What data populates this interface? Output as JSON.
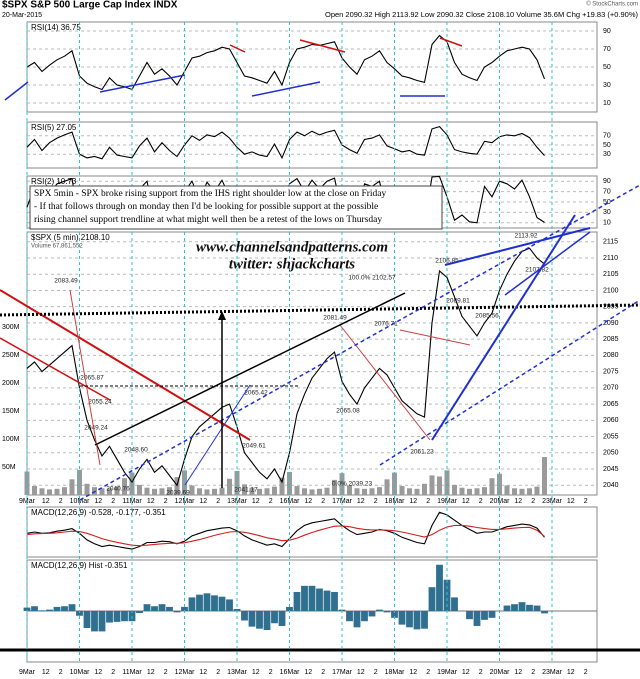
{
  "header": {
    "symbol": "$SPX S&P 500 Large Cap Index INDX",
    "date": "20-Mar-2015",
    "quote": "Open 2090.32 High 2113.92 Low 2090.32 Close 2108.10 Volume 35.6M Chg +19.83 (+0.90%)",
    "credit": "© StockCharts.com"
  },
  "chart_data": [
    {
      "type": "line",
      "title": "RSI(14) 36.75",
      "ylim": [
        0,
        100
      ],
      "yticks": [
        10,
        30,
        50,
        70,
        90
      ],
      "series": [
        {
          "color": "#000000",
          "values": [
            50,
            55,
            45,
            52,
            58,
            62,
            68,
            40,
            32,
            28,
            25,
            38,
            30,
            28,
            25,
            40,
            55,
            42,
            48,
            40,
            30,
            45,
            60,
            62,
            66,
            68,
            72,
            70,
            55,
            40,
            38,
            35,
            32,
            45,
            30,
            55,
            70,
            72,
            75,
            74,
            76,
            78,
            60,
            50,
            42,
            58,
            62,
            68,
            55,
            48,
            40,
            38,
            35,
            33,
            75,
            85,
            78,
            55,
            42,
            38,
            35,
            50,
            55,
            62,
            68,
            70,
            72,
            70,
            58,
            36.75
          ]
        }
      ]
    },
    {
      "type": "line",
      "title": "RSI(5) 27.05",
      "ylim": [
        0,
        100
      ],
      "yticks": [
        30,
        50,
        70
      ],
      "series": [
        {
          "color": "#000000",
          "values": [
            45,
            62,
            38,
            55,
            65,
            72,
            78,
            30,
            22,
            25,
            20,
            45,
            28,
            25,
            22,
            48,
            65,
            35,
            55,
            38,
            25,
            50,
            70,
            60,
            72,
            68,
            78,
            65,
            45,
            30,
            35,
            28,
            25,
            52,
            22,
            62,
            78,
            70,
            80,
            72,
            78,
            82,
            50,
            40,
            32,
            62,
            65,
            72,
            48,
            42,
            35,
            38,
            30,
            28,
            85,
            90,
            72,
            40,
            35,
            32,
            30,
            58,
            55,
            68,
            72,
            70,
            75,
            66,
            45,
            27.05
          ]
        }
      ]
    },
    {
      "type": "line",
      "title": "RSI(2) 10.73",
      "ylim": [
        0,
        100
      ],
      "yticks": [
        10,
        30,
        50,
        70,
        90
      ],
      "series": [
        {
          "color": "#000000",
          "values": [
            40,
            80,
            20,
            65,
            85,
            90,
            95,
            10,
            5,
            20,
            8,
            70,
            15,
            12,
            8,
            75,
            90,
            20,
            65,
            25,
            8,
            70,
            90,
            55,
            88,
            70,
            92,
            60,
            30,
            10,
            40,
            12,
            8,
            75,
            5,
            85,
            95,
            70,
            92,
            75,
            90,
            96,
            30,
            15,
            10,
            85,
            80,
            90,
            25,
            35,
            20,
            45,
            15,
            10,
            98,
            99,
            60,
            15,
            25,
            12,
            10,
            80,
            60,
            90,
            85,
            75,
            92,
            60,
            20,
            10.73
          ]
        }
      ]
    },
    {
      "type": "line",
      "title": "$SPX (5 min) 2108.10",
      "ylim": [
        2037,
        2118
      ],
      "yticks": [
        2040,
        2045,
        2050,
        2055,
        2060,
        2065,
        2070,
        2075,
        2080,
        2085,
        2090,
        2095,
        2100,
        2105,
        2110,
        2115
      ],
      "y2lim": [
        0,
        300000000
      ],
      "y2ticks": [
        {
          "value": 50000000,
          "label": "50M"
        },
        {
          "value": 100000000,
          "label": "100M"
        },
        {
          "value": 150000000,
          "label": "150M"
        },
        {
          "value": 200000000,
          "label": "200M"
        },
        {
          "value": 250000000,
          "label": "250M"
        },
        {
          "value": 300000000,
          "label": "300M"
        }
      ],
      "xlim": [
        0,
        76
      ],
      "xticks": [
        {
          "value": 0,
          "label": "9Mar"
        },
        {
          "value": 2.5,
          "label": "12"
        },
        {
          "value": 4.5,
          "label": "2"
        },
        {
          "value": 7,
          "label": "10Mar"
        },
        {
          "value": 9.5,
          "label": "12"
        },
        {
          "value": 11.5,
          "label": "2"
        },
        {
          "value": 14,
          "label": "11Mar"
        },
        {
          "value": 16.5,
          "label": "12"
        },
        {
          "value": 18.5,
          "label": "2"
        },
        {
          "value": 21,
          "label": "12Mar"
        },
        {
          "value": 23.5,
          "label": "12"
        },
        {
          "value": 25.5,
          "label": "2"
        },
        {
          "value": 28,
          "label": "13Mar"
        },
        {
          "value": 30.5,
          "label": "12"
        },
        {
          "value": 32.5,
          "label": "2"
        },
        {
          "value": 35,
          "label": "16Mar"
        },
        {
          "value": 37.5,
          "label": "12"
        },
        {
          "value": 39.5,
          "label": "2"
        },
        {
          "value": 42,
          "label": "17Mar"
        },
        {
          "value": 44.5,
          "label": "12"
        },
        {
          "value": 46.5,
          "label": "2"
        },
        {
          "value": 49,
          "label": "18Mar"
        },
        {
          "value": 51.5,
          "label": "12"
        },
        {
          "value": 53.5,
          "label": "2"
        },
        {
          "value": 56,
          "label": "19Mar"
        },
        {
          "value": 58.5,
          "label": "12"
        },
        {
          "value": 60.5,
          "label": "2"
        },
        {
          "value": 63,
          "label": "20Mar"
        },
        {
          "value": 65.5,
          "label": "12"
        },
        {
          "value": 67.5,
          "label": "2"
        },
        {
          "value": 70,
          "label": "23Mar"
        },
        {
          "value": 72.5,
          "label": "12"
        },
        {
          "value": 74.5,
          "label": "2"
        }
      ],
      "series": [
        {
          "color": "#000000",
          "values": [
            2076,
            2078,
            2075,
            2077,
            2079,
            2081,
            2083,
            2070,
            2060,
            2054,
            2049,
            2052,
            2048,
            2044,
            2041,
            2045,
            2048,
            2044,
            2046,
            2043,
            2040,
            2048,
            2055,
            2058,
            2060,
            2062,
            2064,
            2065,
            2058,
            2050,
            2047,
            2044,
            2042,
            2045,
            2041,
            2050,
            2062,
            2068,
            2073,
            2076,
            2079,
            2081,
            2072,
            2068,
            2065,
            2070,
            2073,
            2076,
            2074,
            2070,
            2066,
            2064,
            2062,
            2061,
            2090,
            2106,
            2104,
            2098,
            2092,
            2089,
            2086,
            2090,
            2093,
            2100,
            2105,
            2109,
            2112,
            2113,
            2110,
            2108.1
          ]
        },
        {
          "name": "Volume 67,861,552",
          "type": "bar",
          "axis": "y2",
          "color": "#9a9a9a",
          "values": [
            42000000,
            16000000,
            12000000,
            10000000,
            11000000,
            14000000,
            28000000,
            45000000,
            20000000,
            14000000,
            12000000,
            12000000,
            15000000,
            30000000,
            40000000,
            18000000,
            13000000,
            11000000,
            12000000,
            14000000,
            32000000,
            44000000,
            17000000,
            12000000,
            10000000,
            11000000,
            13000000,
            29000000,
            43000000,
            19000000,
            13000000,
            11000000,
            12000000,
            15000000,
            31000000,
            41000000,
            16000000,
            12000000,
            10000000,
            11000000,
            13000000,
            27000000,
            39000000,
            17000000,
            12000000,
            11000000,
            12000000,
            14000000,
            28000000,
            40000000,
            16000000,
            12000000,
            11000000,
            20000000,
            35000000,
            33000000,
            44000000,
            18000000,
            13000000,
            11000000,
            12000000,
            14000000,
            30000000,
            38000000,
            17000000,
            12000000,
            11000000,
            12000000,
            15000000,
            67861552
          ]
        }
      ],
      "price_labels": [
        "2083.49",
        "2065.87",
        "2055.24",
        "2049.24",
        "2048.60",
        "2040.76",
        "2039.69",
        "2065.42",
        "2049.61",
        "2041.17",
        "2081.49",
        "2076.71",
        "2065.08",
        "2061.23",
        "2106.85",
        "2089.81",
        "2085.56",
        "2113.92",
        "2107.82",
        "100.0% 2102.57",
        "0.0% 2039.23"
      ],
      "textbox": [
        "SPX 5min - SPX broke rising support from the IHS right shoulder low at the close on Friday",
        "- If that follows through on monday then I'd be looking for possible support at the possible",
        "rising channel support trendline at what might well then be a retest of the lows on Thursday"
      ],
      "watermark": [
        "www.channelsandpatterns.com",
        "twitter: shjackcharts"
      ]
    },
    {
      "type": "line",
      "title": "MACD(12,26,9) -0.528, -0.177, -0.351",
      "ylim": [
        -8,
        11
      ],
      "series": [
        {
          "color": "#000000",
          "values": [
            1,
            1.5,
            1,
            1.2,
            1.8,
            2.2,
            2.8,
            1,
            -1.5,
            -3,
            -4,
            -3.5,
            -4,
            -4.5,
            -5,
            -4,
            -2.5,
            -2.5,
            -2,
            -2.2,
            -3,
            -2,
            0,
            1,
            2,
            2.5,
            3,
            3.2,
            2,
            0,
            -1.5,
            -2.5,
            -3.5,
            -3,
            -4,
            -1,
            2,
            4,
            5,
            5.5,
            6,
            6.5,
            4,
            2,
            0.5,
            1,
            1.5,
            2.5,
            2,
            1,
            -0.5,
            -1.5,
            -2.5,
            -3,
            4,
            9,
            8,
            6,
            4,
            2.5,
            1,
            1.5,
            1.5,
            2.5,
            3.5,
            4,
            4.5,
            4.2,
            3,
            -0.528
          ]
        },
        {
          "color": "#d02020",
          "values": [
            0.5,
            0.8,
            0.9,
            1,
            1.2,
            1.5,
            1.8,
            1.7,
            1,
            0,
            -1,
            -1.8,
            -2.4,
            -3,
            -3.5,
            -3.7,
            -3.5,
            -3.2,
            -3,
            -2.8,
            -2.8,
            -2.6,
            -2,
            -1.4,
            -0.6,
            0.2,
            0.9,
            1.5,
            1.7,
            1.4,
            0.8,
            0.1,
            -0.7,
            -1.2,
            -1.8,
            -1.6,
            -0.8,
            0.3,
            1.3,
            2.2,
            3,
            3.7,
            3.8,
            3.5,
            2.9,
            2.5,
            2.3,
            2.3,
            2.2,
            2,
            1.5,
            0.9,
            0.2,
            -0.4,
            0.5,
            2.2,
            3.4,
            4,
            4,
            3.7,
            3.2,
            2.8,
            2.5,
            2.5,
            2.7,
            3,
            3.2,
            3.3,
            2.2,
            -0.177
          ]
        }
      ]
    },
    {
      "type": "bar",
      "title": "MACD(12,26,9) Hist -0.351",
      "ylim": [
        -7.5,
        7.5
      ],
      "series": [
        {
          "color": "#2f6f8f",
          "values": [
            0.5,
            0.7,
            0.1,
            0.2,
            0.6,
            0.7,
            1,
            -0.7,
            -2.5,
            -3,
            -3,
            -1.7,
            -1.6,
            -1.5,
            -1.5,
            -0.3,
            1,
            0.7,
            1,
            0.6,
            -0.2,
            0.6,
            2,
            2.4,
            2.6,
            2.3,
            2.1,
            1.7,
            0.3,
            -1.4,
            -2.3,
            -2.6,
            -2.8,
            -1.8,
            -2.2,
            0.6,
            2.8,
            3.7,
            3.7,
            3.3,
            3,
            2.8,
            0.2,
            -1.5,
            -2.4,
            -1.5,
            -0.8,
            0.2,
            -0.2,
            -1,
            -2,
            -2.4,
            -2.7,
            -2.6,
            3.5,
            6.8,
            4.6,
            2,
            0,
            -1.2,
            -2.2,
            -1.3,
            -1,
            0,
            0.8,
            1,
            1.3,
            0.9,
            0.8,
            -0.351
          ]
        }
      ]
    }
  ]
}
